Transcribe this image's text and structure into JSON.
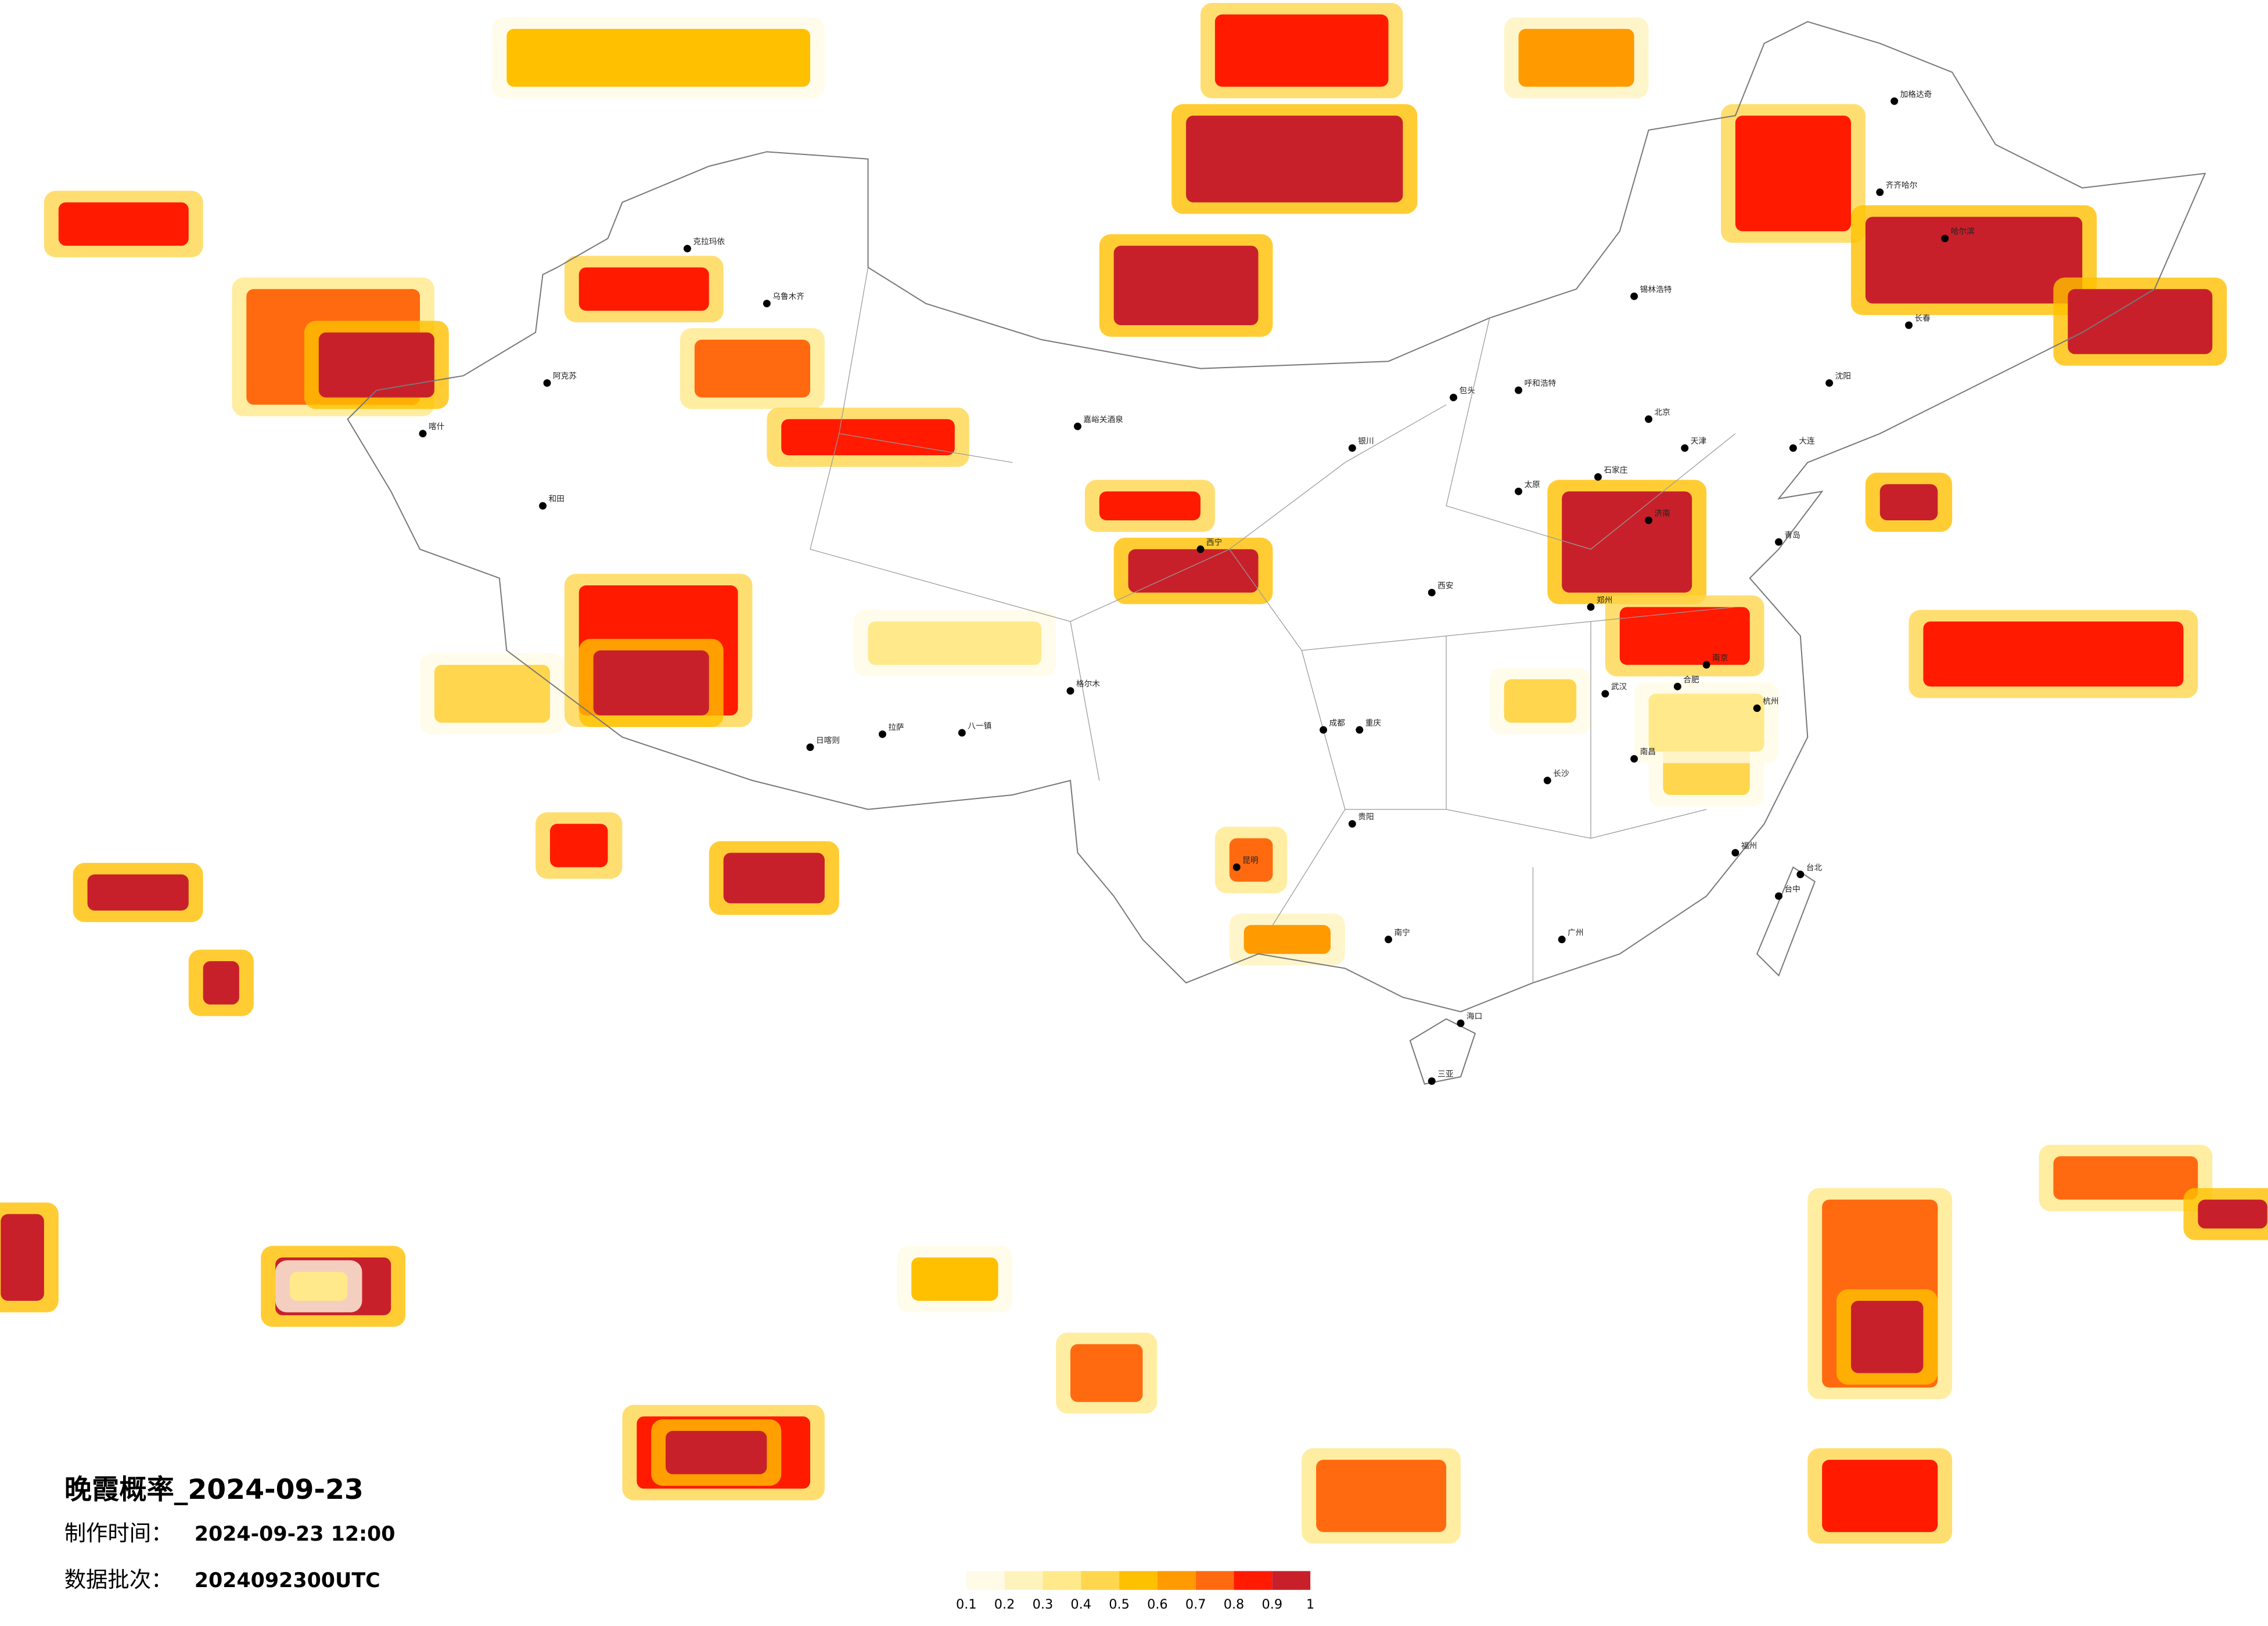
{
  "map": {
    "title": "晚霞概率_2024-09-23",
    "info": [
      {
        "label": "制作时间：",
        "value": "2024-09-23 12:00"
      },
      {
        "label": "数据批次：",
        "value": "2024092300UTC"
      }
    ],
    "colorbar": {
      "colors": [
        "#fffbe6",
        "#fff3bd",
        "#ffe98a",
        "#ffd64d",
        "#ffc000",
        "#ff9a00",
        "#ff6a10",
        "#ff1a00",
        "#c8202a"
      ],
      "ticks": [
        0.1,
        0.2,
        0.3,
        0.4,
        0.5,
        0.6,
        0.7,
        0.8,
        0.9,
        1
      ]
    },
    "cities": [
      "北京",
      "天津",
      "石家庄",
      "济南",
      "呼和浩特",
      "包头",
      "太原",
      "郑州",
      "西安",
      "成都",
      "重庆",
      "贵阳",
      "昆明",
      "南宁",
      "广州",
      "长沙",
      "武汉",
      "南昌",
      "福州",
      "杭州",
      "南京",
      "合肥",
      "拉萨",
      "和田",
      "喀什",
      "克拉玛依",
      "乌鲁木齐",
      "嘉峪关酒泉",
      "西宁",
      "银川",
      "海口",
      "三亚",
      "台北",
      "台中",
      "日喀则",
      "八一镇",
      "格尔木",
      "齐齐哈尔",
      "加格达奇",
      "哈尔滨",
      "长春",
      "沈阳",
      "大连",
      "青岛",
      "阿克苏",
      "锡林浩特"
    ]
  }
}
